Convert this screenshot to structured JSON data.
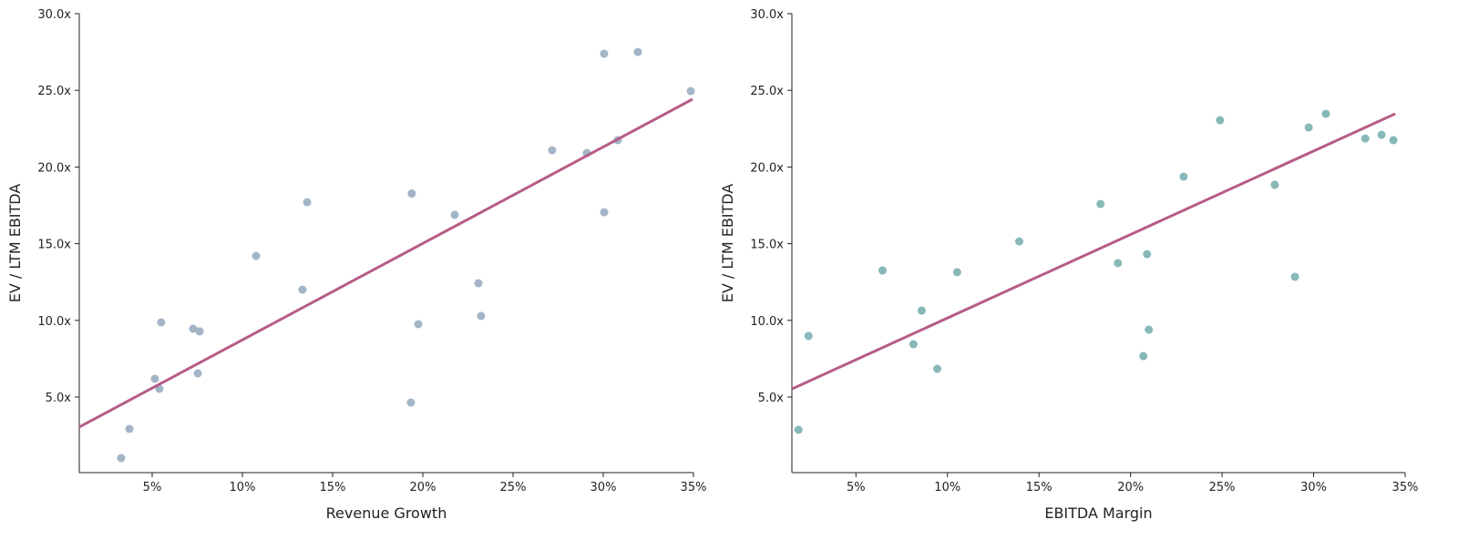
{
  "chart_data": [
    {
      "type": "scatter",
      "xlabel": "Revenue Growth",
      "ylabel": "EV / LTM EBITDA",
      "xlim": [
        0.96,
        35
      ],
      "ylim": [
        0.07,
        30
      ],
      "xticks": [
        5,
        10,
        15,
        20,
        25,
        30,
        35
      ],
      "xtick_labels": [
        "5%",
        "10%",
        "15%",
        "20%",
        "25%",
        "30%",
        "35%"
      ],
      "yticks": [
        5,
        10,
        15,
        20,
        25,
        30
      ],
      "ytick_labels": [
        "5.0x",
        "10.0x",
        "15.0x",
        "20.0x",
        "25.0x",
        "30.0x"
      ],
      "grid": false,
      "point_color": "#a3b5c7",
      "trend_color": "#b65c86",
      "points": [
        [
          3.28,
          1.02
        ],
        [
          3.74,
          2.92
        ],
        [
          5.15,
          6.19
        ],
        [
          5.4,
          5.53
        ],
        [
          5.5,
          9.87
        ],
        [
          7.27,
          9.45
        ],
        [
          7.63,
          9.28
        ],
        [
          7.53,
          6.54
        ],
        [
          10.76,
          14.2
        ],
        [
          13.33,
          12.0
        ],
        [
          13.59,
          17.7
        ],
        [
          19.39,
          18.27
        ],
        [
          19.34,
          4.64
        ],
        [
          19.75,
          9.75
        ],
        [
          21.77,
          16.88
        ],
        [
          23.08,
          12.42
        ],
        [
          23.23,
          10.29
        ],
        [
          27.17,
          21.09
        ],
        [
          29.09,
          20.91
        ],
        [
          30.05,
          27.39
        ],
        [
          30.05,
          17.05
        ],
        [
          30.8,
          21.75
        ],
        [
          31.92,
          27.5
        ],
        [
          34.85,
          24.95
        ]
      ],
      "trend_line": [
        [
          0.96,
          3.04
        ],
        [
          34.95,
          24.42
        ]
      ]
    },
    {
      "type": "scatter",
      "xlabel": "EBITDA Margin",
      "ylabel": "EV / LTM EBITDA",
      "xlim": [
        1.5,
        35
      ],
      "ylim": [
        0.07,
        30
      ],
      "xticks": [
        5,
        10,
        15,
        20,
        25,
        30,
        35
      ],
      "xtick_labels": [
        "5%",
        "10%",
        "15%",
        "20%",
        "25%",
        "30%",
        "35%"
      ],
      "yticks": [
        5,
        10,
        15,
        20,
        25,
        30
      ],
      "ytick_labels": [
        "5.0x",
        "10.0x",
        "15.0x",
        "20.0x",
        "25.0x",
        "30.0x"
      ],
      "grid": false,
      "point_color": "#88b8b8",
      "trend_color": "#b65c86",
      "points": [
        [
          1.86,
          2.86
        ],
        [
          2.41,
          8.98
        ],
        [
          6.45,
          13.25
        ],
        [
          8.14,
          8.44
        ],
        [
          8.59,
          10.64
        ],
        [
          9.44,
          6.84
        ],
        [
          10.53,
          13.14
        ],
        [
          13.92,
          15.15
        ],
        [
          18.36,
          17.59
        ],
        [
          19.31,
          13.73
        ],
        [
          20.7,
          7.67
        ],
        [
          20.9,
          14.32
        ],
        [
          21.0,
          9.39
        ],
        [
          22.9,
          19.37
        ],
        [
          24.89,
          23.05
        ],
        [
          27.88,
          18.84
        ],
        [
          28.98,
          12.84
        ],
        [
          29.73,
          22.58
        ],
        [
          30.67,
          23.47
        ],
        [
          32.82,
          21.86
        ],
        [
          33.71,
          22.1
        ],
        [
          34.36,
          21.75
        ]
      ],
      "trend_line": [
        [
          1.51,
          5.53
        ],
        [
          34.46,
          23.47
        ]
      ]
    }
  ]
}
